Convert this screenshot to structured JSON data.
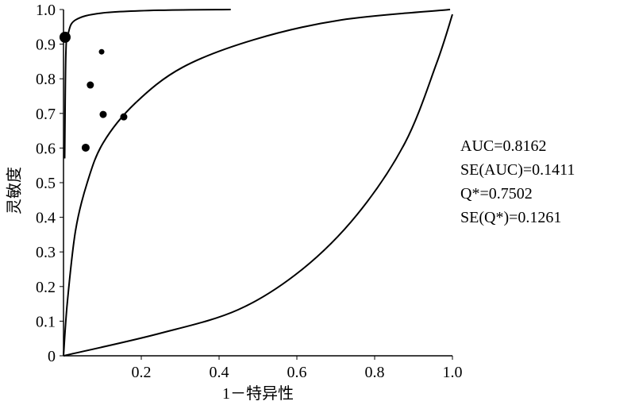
{
  "chart_data": {
    "type": "scatter",
    "xlabel": "1－特异性",
    "ylabel": "灵敏度",
    "x": [
      0.004,
      0.098,
      0.069,
      0.102,
      0.155,
      0.057
    ],
    "values": [
      0.92,
      0.878,
      0.782,
      0.697,
      0.69,
      0.601
    ],
    "sizes": [
      14,
      7,
      9,
      9,
      9,
      10
    ],
    "color": "#000000",
    "lines": [
      {
        "x": [
          0.003,
          0.006,
          0.012,
          0.031,
          0.1,
          0.25,
          0.43
        ],
        "values": [
          0.57,
          0.87,
          0.93,
          0.97,
          0.99,
          0.998,
          1.0
        ]
      },
      {
        "x": [
          0.0,
          0.01,
          0.031,
          0.061,
          0.102,
          0.184,
          0.306,
          0.49,
          0.714,
          0.994
        ],
        "values": [
          0.0,
          0.156,
          0.362,
          0.5,
          0.615,
          0.729,
          0.833,
          0.913,
          0.97,
          1.0
        ]
      },
      {
        "x": [
          0.0,
          0.245,
          0.449,
          0.612,
          0.755,
          0.878,
          0.959,
          1.0
        ],
        "values": [
          0.0,
          0.064,
          0.133,
          0.248,
          0.408,
          0.615,
          0.844,
          0.986
        ]
      }
    ],
    "annotations": [
      "AUC=0.8162",
      "SE(AUC)=0.1411",
      "Q*=0.7502",
      "SE(Q*)=0.1261"
    ],
    "xlim": [
      0,
      1
    ],
    "ylim": [
      0,
      1
    ],
    "xticks": [
      0.2,
      0.4,
      0.6,
      0.8,
      {
        "value": 1,
        "label": "1.0"
      }
    ],
    "yticks": [
      0,
      0.1,
      0.2,
      0.3,
      0.4,
      0.5,
      0.6,
      0.7,
      0.8,
      0.9,
      {
        "value": 1,
        "label": "1.0"
      }
    ]
  }
}
